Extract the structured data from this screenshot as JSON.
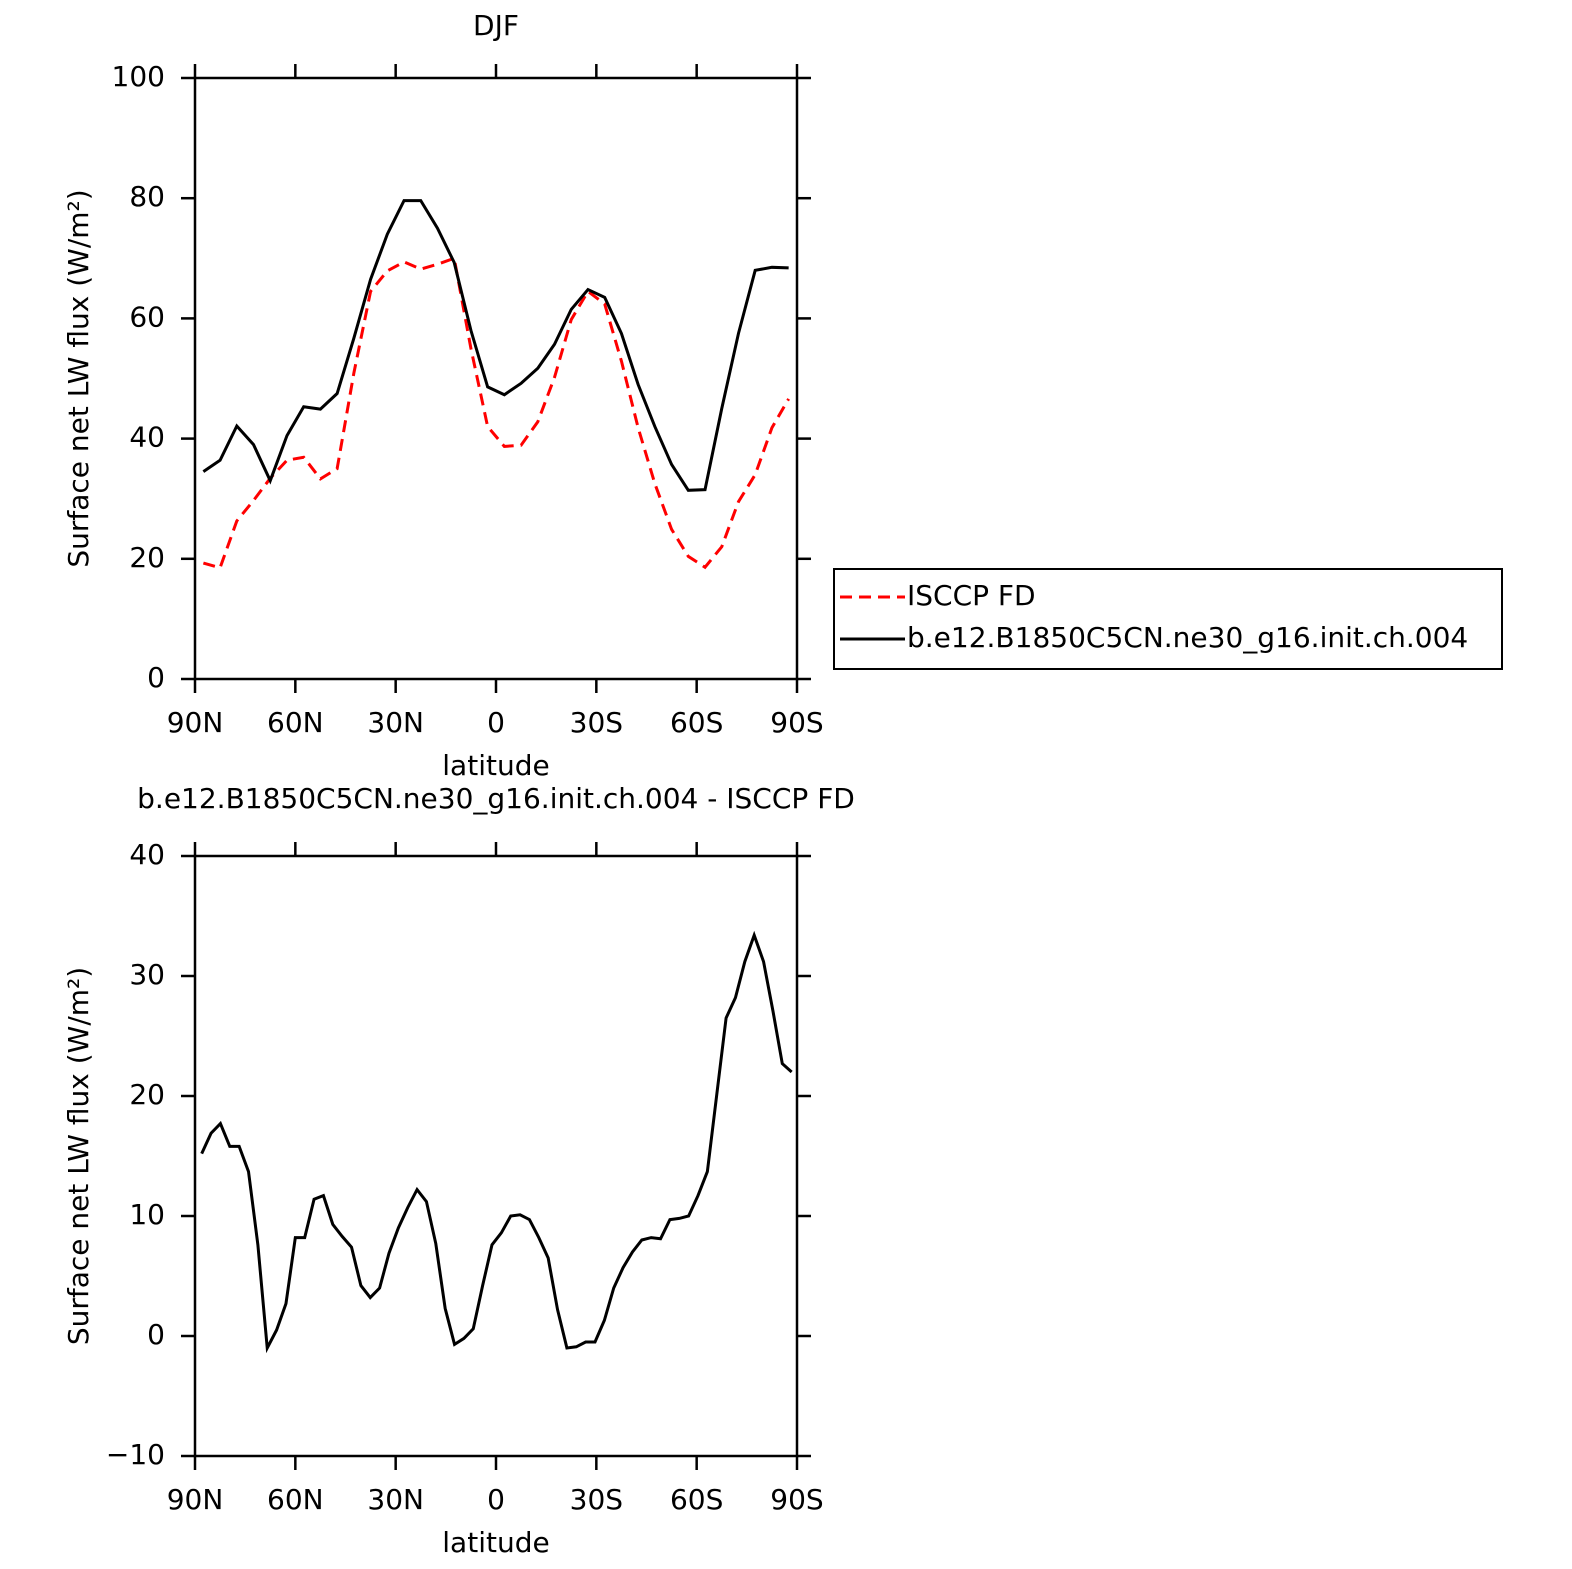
{
  "chart_data": [
    {
      "type": "line",
      "title": "DJF",
      "xlabel": "latitude",
      "ylabel": "Surface net LW flux (W/m²)",
      "x": [
        87.5,
        82.5,
        77.5,
        72.5,
        67.5,
        62.5,
        57.5,
        52.5,
        47.5,
        42.5,
        37.5,
        32.5,
        27.5,
        22.5,
        17.5,
        12.5,
        7.5,
        2.5,
        -2.5,
        -7.5,
        -12.5,
        -17.5,
        -22.5,
        -27.5,
        -32.5,
        -37.5,
        -42.5,
        -47.5,
        -52.5,
        -57.5,
        -62.5,
        -67.5,
        -72.5,
        -77.5,
        -82.5,
        -87.5
      ],
      "series": [
        {
          "name": "ISCCP FD",
          "color": "#ff0000",
          "line_style": "dashed",
          "values": [
            19.3,
            18.5,
            26.3,
            29.7,
            33.4,
            36.4,
            36.9,
            33.3,
            35,
            50.9,
            64.5,
            67.9,
            69.4,
            68.2,
            69,
            70,
            55,
            42,
            38.7,
            38.9,
            42.8,
            50.2,
            59.8,
            64.5,
            62.4,
            52.9,
            41.8,
            32.5,
            24.9,
            20.4,
            18.6,
            22,
            29.5,
            34,
            41.8,
            46.6
          ]
        },
        {
          "name": "b.e12.B1850C5CN.ne30_g16.init.ch.004",
          "color": "#000000",
          "line_style": "solid",
          "values": [
            34.5,
            36.4,
            42.1,
            39,
            33,
            40.5,
            45.3,
            44.9,
            47.5,
            56.7,
            66.5,
            74,
            79.6,
            79.6,
            75,
            69.3,
            58,
            48.6,
            47.3,
            49.2,
            51.7,
            55.7,
            61.5,
            64.8,
            63.5,
            57.5,
            49,
            42,
            35.7,
            31.4,
            31.5,
            45,
            57.5,
            68,
            68.5,
            68.4
          ]
        }
      ],
      "xlim": [
        90,
        -90
      ],
      "xticks": [
        {
          "value": 90,
          "label": "90N"
        },
        {
          "value": 60,
          "label": "60N"
        },
        {
          "value": 30,
          "label": "30N"
        },
        0,
        {
          "value": -30,
          "label": "30S"
        },
        {
          "value": -60,
          "label": "60S"
        },
        {
          "value": -90,
          "label": "90S"
        }
      ],
      "ylim": [
        0,
        100
      ],
      "yticks": [
        0,
        20,
        40,
        60,
        80,
        100
      ],
      "legend": "right"
    },
    {
      "type": "line",
      "title": "b.e12.B1850C5CN.ne30_g16.init.ch.004 - ISCCP FD",
      "xlabel": "latitude",
      "ylabel": "Surface net LW flux (W/m²)",
      "x": [
        88,
        85.2,
        82.4,
        79.6,
        76.8,
        74,
        71.2,
        68.4,
        65.6,
        62.8,
        60,
        57.2,
        54.4,
        51.6,
        48.8,
        46,
        43.2,
        40.4,
        37.6,
        34.8,
        32,
        29.2,
        26.4,
        23.6,
        20.8,
        18,
        15.2,
        12.4,
        9.6,
        6.8,
        4,
        1.2,
        -1.6,
        -4.4,
        -7.2,
        -10,
        -12.8,
        -15.6,
        -18.4,
        -21.2,
        -24,
        -26.8,
        -29.6,
        -32.4,
        -35.2,
        -38,
        -40.8,
        -43.6,
        -46.4,
        -49.2,
        -52,
        -54.8,
        -57.6,
        -60.4,
        -63.2,
        -66,
        -68.8,
        -71.6,
        -74.4,
        -77.2,
        -80,
        -82.8,
        -85.6,
        -88.4
      ],
      "series": [
        {
          "color": "#000000",
          "line_style": "solid",
          "values": [
            15.2,
            16.9,
            17.7,
            15.8,
            15.8,
            13.7,
            7.6,
            -1,
            0.5,
            2.7,
            8.2,
            8.2,
            11.4,
            11.7,
            9.3,
            8.3,
            7.4,
            4.2,
            3.2,
            4,
            6.9,
            9,
            10.7,
            12.2,
            11.2,
            7.7,
            2.3,
            -0.7,
            -0.2,
            0.6,
            4.2,
            7.6,
            8.6,
            10,
            10.1,
            9.7,
            8.2,
            6.5,
            2.2,
            -1,
            -0.9,
            -0.5,
            -0.5,
            1.3,
            4,
            5.7,
            7,
            8,
            8.2,
            8.1,
            9.7,
            9.8,
            10,
            11.7,
            13.7,
            20.1,
            26.5,
            28.2,
            31.2,
            33.4,
            31.2,
            27.1,
            22.7,
            22
          ]
        }
      ],
      "xlim": [
        90,
        -90
      ],
      "xticks": [
        {
          "value": 90,
          "label": "90N"
        },
        {
          "value": 60,
          "label": "60N"
        },
        {
          "value": 30,
          "label": "30N"
        },
        0,
        {
          "value": -30,
          "label": "30S"
        },
        {
          "value": -60,
          "label": "60S"
        },
        {
          "value": -90,
          "label": "90S"
        }
      ],
      "ylim": [
        -10,
        40
      ],
      "yticks": [
        {
          "value": -10,
          "label": "−10"
        },
        0,
        10,
        20,
        30,
        40
      ]
    }
  ]
}
